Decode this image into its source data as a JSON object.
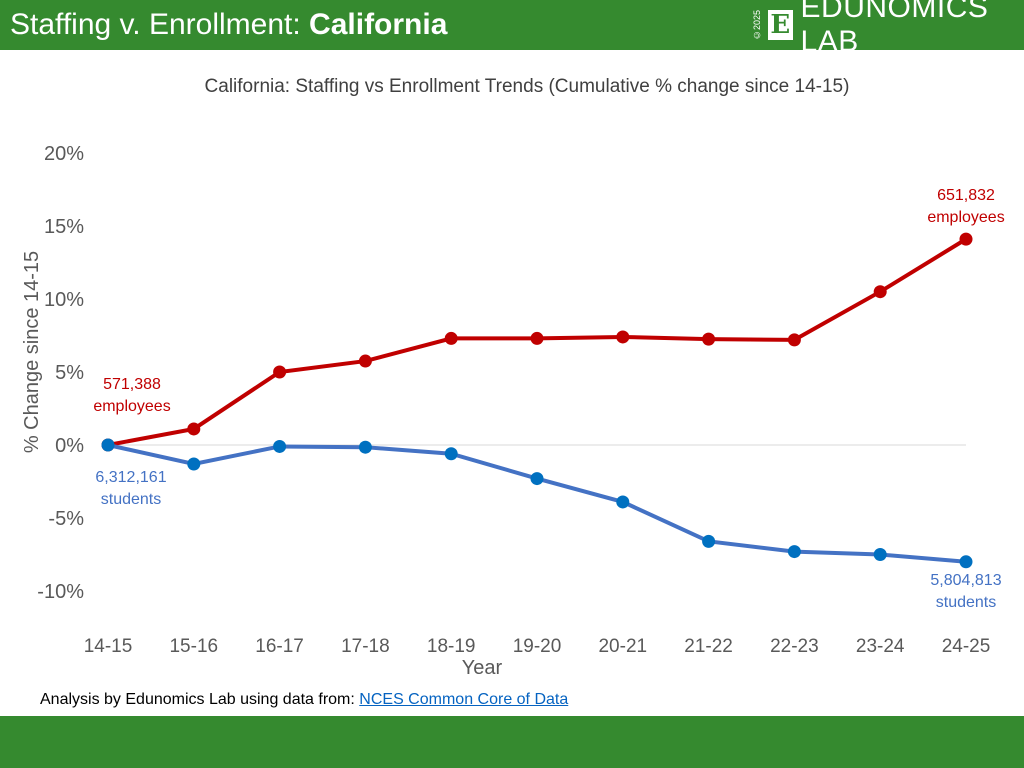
{
  "header": {
    "title_plain": "Staffing v. Enrollment: ",
    "title_bold": "California",
    "logo_copyright": "©2025",
    "logo_letter": "E",
    "logo_name": "EDUNOMICS LAB"
  },
  "footer_note": {
    "text": "Analysis by Edunomics Lab using data from: ",
    "link": "NCES Common Core of Data"
  },
  "chart_data": {
    "type": "line",
    "title": "California: Staffing vs Enrollment Trends (Cumulative % change since 14-15)",
    "xlabel": "Year",
    "ylabel": "% Change since 14-15",
    "categories": [
      "14-15",
      "15-16",
      "16-17",
      "17-18",
      "18-19",
      "19-20",
      "20-21",
      "21-22",
      "22-23",
      "23-24",
      "24-25"
    ],
    "ylim": [
      -12,
      20
    ],
    "yticks": [
      {
        "v": 20,
        "label": "20%"
      },
      {
        "v": 15,
        "label": "15%"
      },
      {
        "v": 10,
        "label": "10%"
      },
      {
        "v": 5,
        "label": "5%"
      },
      {
        "v": 0,
        "label": "0%"
      },
      {
        "v": -5,
        "label": "-5%"
      },
      {
        "v": -10,
        "label": "-10%"
      }
    ],
    "grid": false,
    "series": [
      {
        "key": "staff",
        "color": "#c00000",
        "values": [
          0,
          1.1,
          5.0,
          5.75,
          7.3,
          7.3,
          7.4,
          7.25,
          7.2,
          10.5,
          14.1
        ]
      },
      {
        "key": "students",
        "color": "#4472c4",
        "marker": "#0070c0",
        "values": [
          0,
          -1.3,
          -0.1,
          -0.15,
          -0.6,
          -2.3,
          -3.9,
          -6.6,
          -7.3,
          -7.5,
          -8.0
        ]
      }
    ],
    "annotations": {
      "staff_start": [
        "571,388",
        "employees"
      ],
      "staff_end": [
        "651,832",
        "employees"
      ],
      "students_start": [
        "6,312,161",
        "students"
      ],
      "students_end": [
        "5,804,813",
        "students"
      ]
    }
  }
}
